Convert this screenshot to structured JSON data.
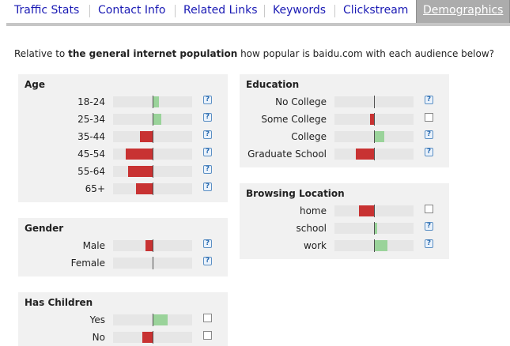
{
  "tabs": [
    {
      "label": "Traffic Stats",
      "active": false
    },
    {
      "label": "Contact Info",
      "active": false
    },
    {
      "label": "Related Links",
      "active": false
    },
    {
      "label": "Keywords",
      "active": false
    },
    {
      "label": "Clickstream",
      "active": false
    },
    {
      "label": "Demographics",
      "active": true
    }
  ],
  "intro": {
    "prefix": "Relative to ",
    "bold": "the general internet population",
    "suffix": " how popular is baidu.com with each audience below?"
  },
  "colors": {
    "negative": "#c83232",
    "positive": "#9ad39a",
    "tab_active": "#acacac"
  },
  "panels": {
    "age": {
      "title": "Age",
      "rows": [
        {
          "label": "18-24",
          "value": 0.14,
          "marker": "help"
        },
        {
          "label": "25-34",
          "value": 0.2,
          "marker": "help"
        },
        {
          "label": "35-44",
          "value": -0.32,
          "marker": "help"
        },
        {
          "label": "45-54",
          "value": -0.68,
          "marker": "help"
        },
        {
          "label": "55-64",
          "value": -0.62,
          "marker": "help"
        },
        {
          "label": "65+",
          "value": -0.42,
          "marker": "help"
        }
      ]
    },
    "gender": {
      "title": "Gender",
      "rows": [
        {
          "label": "Male",
          "value": -0.18,
          "marker": "help"
        },
        {
          "label": "Female",
          "value": 0.0,
          "marker": "help"
        }
      ]
    },
    "children": {
      "title": "Has Children",
      "rows": [
        {
          "label": "Yes",
          "value": 0.36,
          "marker": "checkbox"
        },
        {
          "label": "No",
          "value": -0.26,
          "marker": "checkbox"
        }
      ]
    },
    "education": {
      "title": "Education",
      "rows": [
        {
          "label": "No College",
          "value": 0.0,
          "marker": "help"
        },
        {
          "label": "Some College",
          "value": -0.1,
          "marker": "checkbox"
        },
        {
          "label": "College",
          "value": 0.24,
          "marker": "help"
        },
        {
          "label": "Graduate School",
          "value": -0.46,
          "marker": "help"
        }
      ]
    },
    "location": {
      "title": "Browsing Location",
      "rows": [
        {
          "label": "home",
          "value": -0.38,
          "marker": "checkbox"
        },
        {
          "label": "school",
          "value": 0.06,
          "marker": "help"
        },
        {
          "label": "work",
          "value": 0.32,
          "marker": "help"
        }
      ]
    }
  }
}
